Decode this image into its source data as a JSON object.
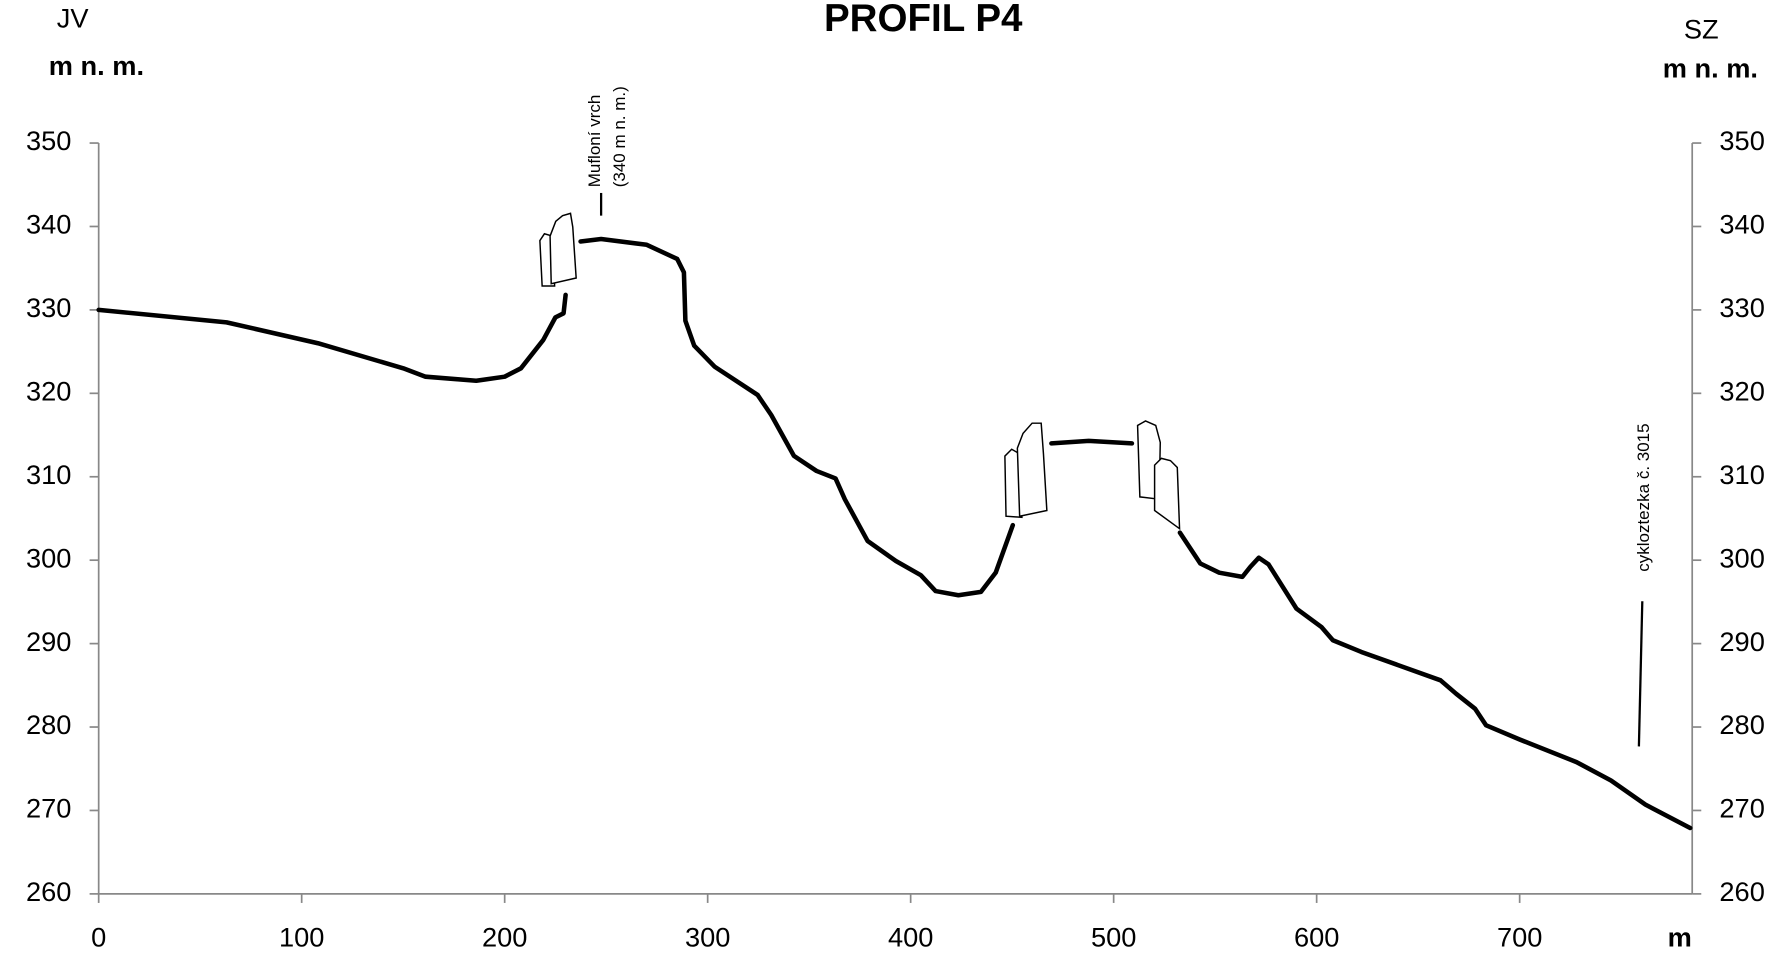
{
  "chart_data": {
    "type": "line",
    "title": "PROFIL P4",
    "left_direction": "JV",
    "right_direction": "SZ",
    "y_label": "m n. m.",
    "y2_label": "m n. m.",
    "x_label": "m",
    "color": "#000000",
    "annotations": [
      {
        "text": [
          "Mufloní vrch",
          "(340 m n. m.)"
        ]
      },
      {
        "text": [
          "cykloztezka č. 3015"
        ]
      }
    ],
    "x": [
      0,
      63,
      108,
      150,
      161,
      186,
      200,
      208,
      219,
      225,
      229,
      230,
      null,
      237.4,
      247.5,
      270,
      285,
      288.3,
      289,
      293.4,
      303.4,
      324.6,
      331.3,
      342.5,
      353.6,
      363,
      367.6,
      378.8,
      392.7,
      405,
      412.3,
      423.5,
      434.6,
      441.9,
      450.3,
      null,
      469.3,
      487.7,
      509,
      null,
      532.6,
      542.7,
      552,
      563.4,
      567.3,
      571.5,
      576.3,
      590,
      602.3,
      608,
      622,
      661,
      668.7,
      678,
      683.5,
      700,
      728,
      745,
      762,
      784
    ],
    "values": [
      330,
      328.5,
      326,
      323,
      322,
      321.5,
      322,
      323,
      326.4,
      329.1,
      329.6,
      331.8,
      null,
      338.2,
      338.5,
      337.8,
      336.1,
      334.5,
      328.7,
      325.7,
      323.2,
      319.8,
      317.4,
      312.5,
      310.7,
      309.8,
      307.3,
      302.3,
      299.9,
      298.2,
      296.3,
      295.8,
      296.2,
      298.5,
      304.2,
      null,
      314,
      314.3,
      314,
      null,
      303.3,
      299.6,
      298.5,
      298,
      299.2,
      300.3,
      299.5,
      294.2,
      292,
      290.4,
      289,
      285.6,
      284,
      282.2,
      280.2,
      278.5,
      275.8,
      273.6,
      270.7,
      267.9
    ],
    "xlim": [
      0,
      785
    ],
    "xticks": [
      0,
      100,
      200,
      300,
      400,
      500,
      600,
      700
    ],
    "ylim": [
      260,
      350
    ],
    "yticks": [
      260,
      270,
      280,
      290,
      300,
      310,
      320,
      330,
      340,
      350
    ],
    "y2lim": [
      260,
      350
    ],
    "y2ticks": [
      260,
      270,
      280,
      290,
      300,
      310,
      320,
      330,
      340,
      350
    ],
    "grid": false
  }
}
